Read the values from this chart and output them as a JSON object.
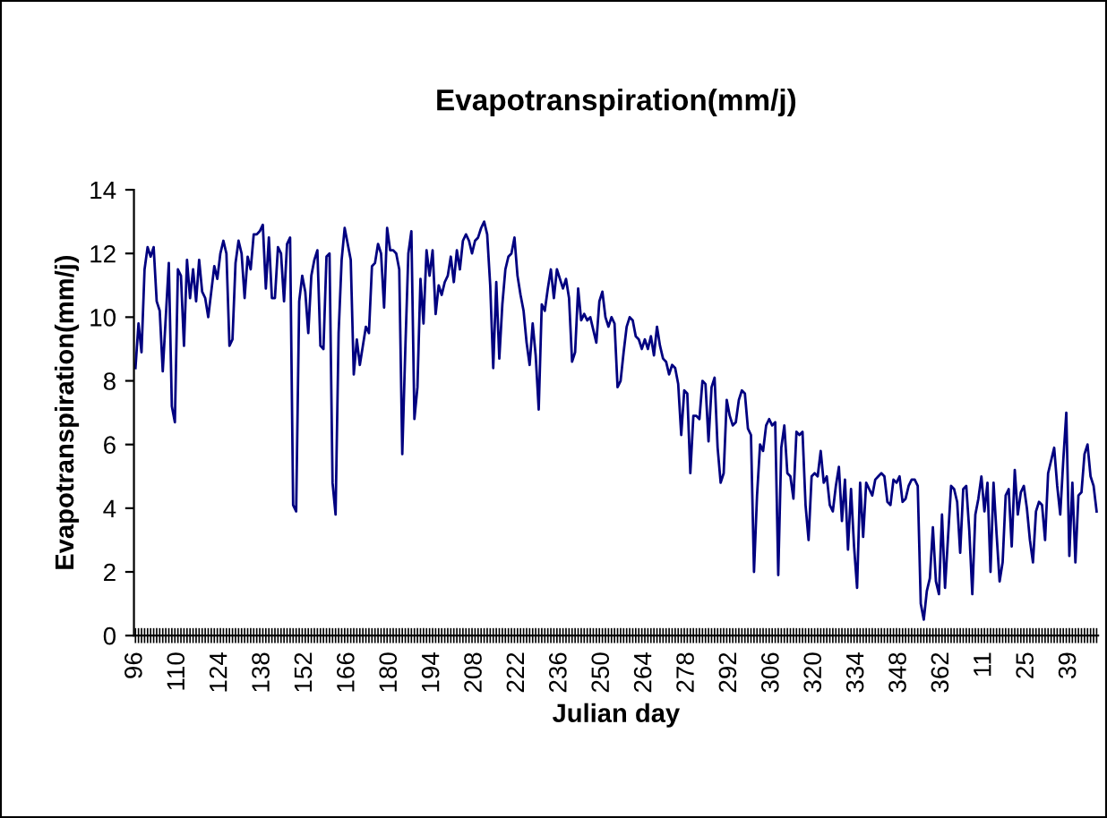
{
  "chart_data": {
    "type": "line",
    "title": "Evapotranspiration(mm/j)",
    "xlabel": "Julian day",
    "ylabel": "Evapotranspiration(mm/j)",
    "categories": [
      "96",
      null,
      null,
      null,
      null,
      null,
      null,
      null,
      null,
      null,
      null,
      null,
      null,
      null,
      "110",
      null,
      null,
      null,
      null,
      null,
      null,
      null,
      null,
      null,
      null,
      null,
      null,
      null,
      "124",
      null,
      null,
      null,
      null,
      null,
      null,
      null,
      null,
      null,
      null,
      null,
      null,
      null,
      "138",
      null,
      null,
      null,
      null,
      null,
      null,
      null,
      null,
      null,
      null,
      null,
      null,
      null,
      "152",
      null,
      null,
      null,
      null,
      null,
      null,
      null,
      null,
      null,
      null,
      null,
      null,
      null,
      "166",
      null,
      null,
      null,
      null,
      null,
      null,
      null,
      null,
      null,
      null,
      null,
      null,
      null,
      "180",
      null,
      null,
      null,
      null,
      null,
      null,
      null,
      null,
      null,
      null,
      null,
      null,
      null,
      "194",
      null,
      null,
      null,
      null,
      null,
      null,
      null,
      null,
      null,
      null,
      null,
      null,
      null,
      "208",
      null,
      null,
      null,
      null,
      null,
      null,
      null,
      null,
      null,
      null,
      null,
      null,
      null,
      "222",
      null,
      null,
      null,
      null,
      null,
      null,
      null,
      null,
      null,
      null,
      null,
      null,
      null,
      "236",
      null,
      null,
      null,
      null,
      null,
      null,
      null,
      null,
      null,
      null,
      null,
      null,
      null,
      "250",
      null,
      null,
      null,
      null,
      null,
      null,
      null,
      null,
      null,
      null,
      null,
      null,
      null,
      "264",
      null,
      null,
      null,
      null,
      null,
      null,
      null,
      null,
      null,
      null,
      null,
      null,
      null,
      "278",
      null,
      null,
      null,
      null,
      null,
      null,
      null,
      null,
      null,
      null,
      null,
      null,
      null,
      "292",
      null,
      null,
      null,
      null,
      null,
      null,
      null,
      null,
      null,
      null,
      null,
      null,
      null,
      "306",
      null,
      null,
      null,
      null,
      null,
      null,
      null,
      null,
      null,
      null,
      null,
      null,
      null,
      "320",
      null,
      null,
      null,
      null,
      null,
      null,
      null,
      null,
      null,
      null,
      null,
      null,
      null,
      "334",
      null,
      null,
      null,
      null,
      null,
      null,
      null,
      null,
      null,
      null,
      null,
      null,
      null,
      "348",
      null,
      null,
      null,
      null,
      null,
      null,
      null,
      null,
      null,
      null,
      null,
      null,
      null,
      "362",
      null,
      null,
      null,
      null,
      null,
      null,
      null,
      null,
      null,
      null,
      null,
      null,
      null,
      "11",
      null,
      null,
      null,
      null,
      null,
      null,
      null,
      null,
      null,
      null,
      null,
      null,
      null,
      "25",
      null,
      null,
      null,
      null,
      null,
      null,
      null,
      null,
      null,
      null,
      null,
      null,
      null,
      "39",
      null,
      null,
      null,
      null,
      null,
      null,
      null,
      null,
      null
    ],
    "series": [
      {
        "color": "#000080",
        "values": [
          8.4,
          9.8,
          8.9,
          11.5,
          12.2,
          11.9,
          12.2,
          10.5,
          10.2,
          8.3,
          10.0,
          11.7,
          7.2,
          6.7,
          11.5,
          11.3,
          9.1,
          11.8,
          10.6,
          11.5,
          10.5,
          11.8,
          10.8,
          10.6,
          10.0,
          10.8,
          11.6,
          11.2,
          12.0,
          12.4,
          12.0,
          9.1,
          9.3,
          11.7,
          12.4,
          12.0,
          10.6,
          11.9,
          11.5,
          12.6,
          12.6,
          12.7,
          12.9,
          10.9,
          12.5,
          10.6,
          10.6,
          12.2,
          12.0,
          10.5,
          12.3,
          12.5,
          4.1,
          3.9,
          10.5,
          11.3,
          10.8,
          9.5,
          11.3,
          11.8,
          12.1,
          9.1,
          9.0,
          11.9,
          12.0,
          4.8,
          3.8,
          9.5,
          11.8,
          12.8,
          12.3,
          11.8,
          8.2,
          9.3,
          8.5,
          9.1,
          9.7,
          9.5,
          11.6,
          11.7,
          12.3,
          12.0,
          10.3,
          12.8,
          12.1,
          12.1,
          12.0,
          11.5,
          5.7,
          9.0,
          12.0,
          12.7,
          6.8,
          7.8,
          11.2,
          9.8,
          12.1,
          11.3,
          12.1,
          10.1,
          11.0,
          10.7,
          11.1,
          11.3,
          11.9,
          11.1,
          12.1,
          11.5,
          12.4,
          12.6,
          12.4,
          12.0,
          12.4,
          12.5,
          12.8,
          13.0,
          12.6,
          11.0,
          8.4,
          11.1,
          8.7,
          10.4,
          11.5,
          11.9,
          12.0,
          12.5,
          11.3,
          10.7,
          10.2,
          9.2,
          8.5,
          9.8,
          8.8,
          7.1,
          10.4,
          10.2,
          10.9,
          11.5,
          10.6,
          11.5,
          11.2,
          10.9,
          11.2,
          10.6,
          8.6,
          8.9,
          10.9,
          9.9,
          10.1,
          9.9,
          10.0,
          9.6,
          9.2,
          10.5,
          10.8,
          10.0,
          9.7,
          10.0,
          9.8,
          7.8,
          8.0,
          8.9,
          9.7,
          10.0,
          9.9,
          9.4,
          9.3,
          9.0,
          9.3,
          9.0,
          9.4,
          8.8,
          9.7,
          9.1,
          8.7,
          8.6,
          8.2,
          8.5,
          8.4,
          7.9,
          6.3,
          7.7,
          7.6,
          5.1,
          6.9,
          6.9,
          6.8,
          8.0,
          7.9,
          6.1,
          7.8,
          8.1,
          5.9,
          4.8,
          5.1,
          7.4,
          6.9,
          6.6,
          6.7,
          7.4,
          7.7,
          7.6,
          6.5,
          6.3,
          2.0,
          4.4,
          6.0,
          5.8,
          6.6,
          6.8,
          6.6,
          6.7,
          1.9,
          5.9,
          6.6,
          5.1,
          5.0,
          4.3,
          6.4,
          6.3,
          6.4,
          4.1,
          3.0,
          5.0,
          5.1,
          5.0,
          5.8,
          4.8,
          5.0,
          4.1,
          3.9,
          4.7,
          5.3,
          3.6,
          4.9,
          2.7,
          4.6,
          2.8,
          1.5,
          4.8,
          3.1,
          4.8,
          4.6,
          4.4,
          4.9,
          5.0,
          5.1,
          5.0,
          4.2,
          4.1,
          4.9,
          4.8,
          5.0,
          4.2,
          4.3,
          4.7,
          4.9,
          4.9,
          4.7,
          1.0,
          0.5,
          1.4,
          1.8,
          3.4,
          1.7,
          1.3,
          3.8,
          1.5,
          3.1,
          4.7,
          4.6,
          4.2,
          2.6,
          4.6,
          4.7,
          3.3,
          1.3,
          3.8,
          4.3,
          5.0,
          3.9,
          4.8,
          2.0,
          4.8,
          3.2,
          1.7,
          2.3,
          4.4,
          4.6,
          2.8,
          5.2,
          3.8,
          4.5,
          4.7,
          4.0,
          3.0,
          2.3,
          3.9,
          4.2,
          4.1,
          3.0,
          5.1,
          5.5,
          5.9,
          4.7,
          3.8,
          5.5,
          7.0,
          2.5,
          4.8,
          2.3,
          4.4,
          4.5,
          5.7,
          6.0,
          5.0,
          4.7,
          3.9
        ]
      }
    ],
    "ylim": [
      0,
      14
    ],
    "yticks": [
      0,
      2,
      4,
      6,
      8,
      10,
      12,
      14
    ],
    "grid": false,
    "marker": "none",
    "line_style": "solid"
  }
}
